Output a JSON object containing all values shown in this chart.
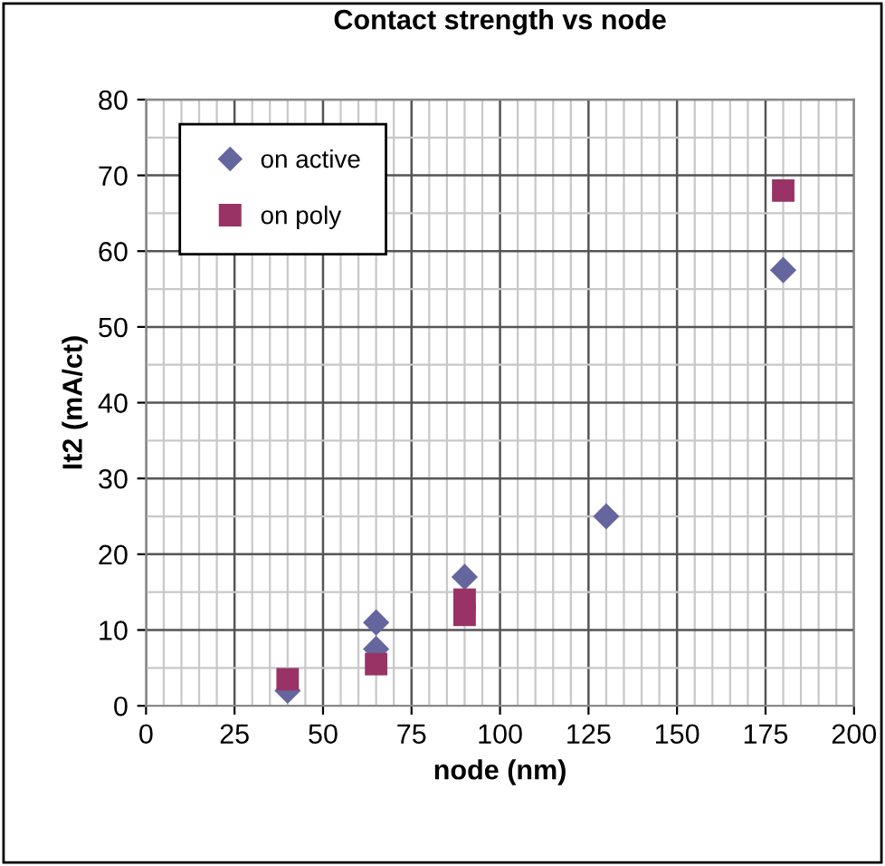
{
  "chart_data": {
    "type": "scatter",
    "title": "Contact strength vs node",
    "xlabel": "node (nm)",
    "ylabel": "It2 (mA/ct)",
    "series": [
      {
        "name": "on active",
        "color": "#66669e",
        "marker": "diamond",
        "x": [
          40,
          65,
          65,
          90,
          130,
          180
        ],
        "values": [
          2,
          11,
          7.5,
          17,
          25,
          57.5
        ]
      },
      {
        "name": "on poly",
        "color": "#993366",
        "marker": "square",
        "x": [
          40,
          65,
          90,
          90,
          180
        ],
        "values": [
          3.5,
          5.5,
          12,
          14,
          68
        ]
      }
    ],
    "xlim": [
      0,
      200
    ],
    "xticks": [
      0,
      25,
      50,
      75,
      100,
      125,
      150,
      175,
      200
    ],
    "ylim": [
      0,
      80
    ],
    "yticks": [
      0,
      10,
      20,
      30,
      40,
      50,
      60,
      70,
      80
    ],
    "grid": true,
    "legend": "top left"
  }
}
